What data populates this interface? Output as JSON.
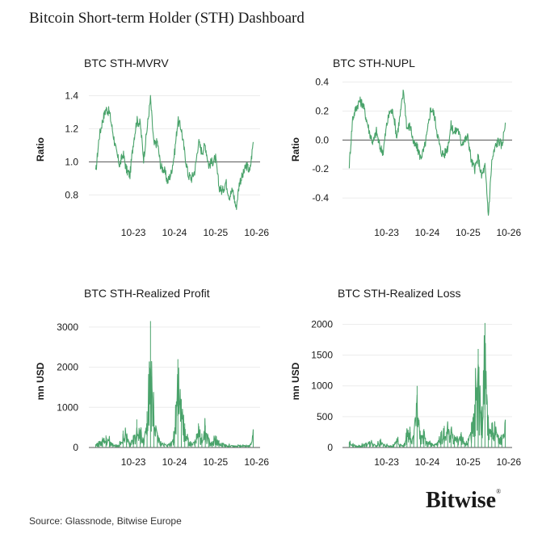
{
  "title": "Bitcoin Short-term Holder (STH) Dashboard",
  "source": "Source: Glassnode, Bitwise Europe",
  "brand": "Bitwise",
  "series_color": "#4aa36b",
  "chart_data": [
    {
      "id": "mvrv",
      "type": "line",
      "title": "BTC STH-MVRV",
      "ylabel": "Ratio",
      "xlabel": "",
      "x_range": [
        "2022-09",
        "2026-11"
      ],
      "xticks": [
        "10-23",
        "10-24",
        "10-25",
        "10-26"
      ],
      "ylim": [
        0.65,
        1.5
      ],
      "yticks": [
        0.8,
        1.0,
        1.2,
        1.4
      ],
      "ytick_labels": [
        "0.8",
        "1.0",
        "1.2",
        "1.4"
      ],
      "reference_line": 1.0,
      "grid": true,
      "series": [
        {
          "x": [
            "2022-11",
            "2022-12",
            "2023-01",
            "2023-02",
            "2023-03",
            "2023-04",
            "2023-05",
            "2023-06",
            "2023-07",
            "2023-08",
            "2023-09",
            "2023-10",
            "2023-11",
            "2023-12",
            "2024-01",
            "2024-02",
            "2024-03",
            "2024-04",
            "2024-05",
            "2024-06",
            "2024-07",
            "2024-08",
            "2024-09",
            "2024-10",
            "2024-11",
            "2024-12",
            "2025-01",
            "2025-02",
            "2025-03",
            "2025-04",
            "2025-05",
            "2025-06",
            "2025-07",
            "2025-08",
            "2025-09",
            "2025-10",
            "2025-11",
            "2025-12",
            "2026-01",
            "2026-02",
            "2026-03",
            "2026-04",
            "2026-05",
            "2026-06",
            "2026-07",
            "2026-08",
            "2026-09"
          ],
          "values": [
            0.93,
            1.15,
            1.25,
            1.32,
            1.3,
            1.18,
            1.06,
            0.98,
            1.05,
            0.95,
            0.92,
            1.12,
            1.25,
            1.23,
            1.02,
            1.2,
            1.38,
            1.1,
            1.12,
            0.97,
            0.95,
            0.88,
            0.93,
            1.05,
            1.25,
            1.2,
            1.05,
            0.92,
            0.9,
            0.95,
            1.12,
            1.06,
            1.1,
            0.98,
            1.0,
            1.02,
            0.85,
            0.82,
            0.88,
            0.79,
            0.83,
            0.72,
            0.88,
            0.92,
            0.98,
            0.94,
            1.12
          ]
        }
      ]
    },
    {
      "id": "nupl",
      "type": "line",
      "title": "BTC STH-NUPL",
      "ylabel": "Ratio",
      "xlabel": "",
      "x_range": [
        "2022-09",
        "2026-11"
      ],
      "xticks": [
        "10-23",
        "10-24",
        "10-25",
        "10-26"
      ],
      "ylim": [
        -0.55,
        0.42
      ],
      "yticks": [
        -0.4,
        -0.2,
        0.0,
        0.2,
        0.4
      ],
      "ytick_labels": [
        "-0.4",
        "-0.2",
        "0.0",
        "0.2",
        "0.4"
      ],
      "reference_line": 0.0,
      "grid": true,
      "series": [
        {
          "x": [
            "2022-11",
            "2022-12",
            "2023-01",
            "2023-02",
            "2023-03",
            "2023-04",
            "2023-05",
            "2023-06",
            "2023-07",
            "2023-08",
            "2023-09",
            "2023-10",
            "2023-11",
            "2023-12",
            "2024-01",
            "2024-02",
            "2024-03",
            "2024-04",
            "2024-05",
            "2024-06",
            "2024-07",
            "2024-08",
            "2024-09",
            "2024-10",
            "2024-11",
            "2024-12",
            "2025-01",
            "2025-02",
            "2025-03",
            "2025-04",
            "2025-05",
            "2025-06",
            "2025-07",
            "2025-08",
            "2025-09",
            "2025-10",
            "2025-11",
            "2025-12",
            "2026-01",
            "2026-02",
            "2026-03",
            "2026-04",
            "2026-05",
            "2026-06",
            "2026-07",
            "2026-08",
            "2026-09"
          ],
          "values": [
            -0.17,
            0.15,
            0.22,
            0.27,
            0.25,
            0.15,
            0.05,
            -0.02,
            0.06,
            -0.05,
            -0.08,
            0.1,
            0.2,
            0.19,
            0.02,
            0.17,
            0.34,
            0.08,
            0.1,
            -0.03,
            -0.05,
            -0.12,
            -0.07,
            0.05,
            0.22,
            0.18,
            0.04,
            -0.08,
            -0.1,
            -0.05,
            0.1,
            0.05,
            0.08,
            -0.02,
            0.0,
            0.02,
            -0.15,
            -0.2,
            -0.12,
            -0.25,
            -0.18,
            -0.52,
            -0.15,
            -0.05,
            0.0,
            -0.04,
            0.12
          ]
        }
      ]
    },
    {
      "id": "profit",
      "type": "line",
      "title": "BTC STH-Realized Profit",
      "ylabel": "mn USD",
      "xlabel": "",
      "x_range": [
        "2022-09",
        "2026-11"
      ],
      "xticks": [
        "10-23",
        "10-24",
        "10-25",
        "10-26"
      ],
      "ylim": [
        0,
        3300
      ],
      "yticks": [
        0,
        1000,
        2000,
        3000
      ],
      "ytick_labels": [
        "0",
        "1000",
        "2000",
        "3000"
      ],
      "reference_line": 0,
      "grid": true,
      "series": [
        {
          "x": [
            "2022-11",
            "2022-12",
            "2023-01",
            "2023-02",
            "2023-03",
            "2023-04",
            "2023-05",
            "2023-06",
            "2023-07",
            "2023-08",
            "2023-09",
            "2023-10",
            "2023-11",
            "2023-12",
            "2024-01",
            "2024-02",
            "2024-03",
            "2024-04",
            "2024-05",
            "2024-06",
            "2024-07",
            "2024-08",
            "2024-09",
            "2024-10",
            "2024-11",
            "2024-12",
            "2025-01",
            "2025-02",
            "2025-03",
            "2025-04",
            "2025-05",
            "2025-06",
            "2025-07",
            "2025-08",
            "2025-09",
            "2025-10",
            "2025-11",
            "2025-12",
            "2026-01",
            "2026-02",
            "2026-03",
            "2026-04",
            "2026-05",
            "2026-06",
            "2026-07",
            "2026-08",
            "2026-09"
          ],
          "values": [
            80,
            150,
            250,
            300,
            220,
            100,
            80,
            150,
            420,
            260,
            150,
            260,
            700,
            450,
            200,
            900,
            3150,
            800,
            350,
            150,
            120,
            80,
            150,
            400,
            2200,
            1200,
            600,
            250,
            130,
            200,
            600,
            350,
            550,
            250,
            120,
            300,
            180,
            120,
            80,
            60,
            50,
            40,
            60,
            70,
            50,
            60,
            450
          ]
        }
      ]
    },
    {
      "id": "loss",
      "type": "line",
      "title": "BTC STH-Realized Loss",
      "ylabel": "mn USD",
      "xlabel": "",
      "x_range": [
        "2022-09",
        "2026-11"
      ],
      "xticks": [
        "10-23",
        "10-24",
        "10-25",
        "10-26"
      ],
      "ylim": [
        0,
        2150
      ],
      "yticks": [
        0,
        500,
        1000,
        1500,
        2000
      ],
      "ytick_labels": [
        "0",
        "500",
        "1000",
        "1500",
        "2000"
      ],
      "reference_line": 0,
      "grid": true,
      "series": [
        {
          "x": [
            "2022-11",
            "2022-12",
            "2023-01",
            "2023-02",
            "2023-03",
            "2023-04",
            "2023-05",
            "2023-06",
            "2023-07",
            "2023-08",
            "2023-09",
            "2023-10",
            "2023-11",
            "2023-12",
            "2024-01",
            "2024-02",
            "2024-03",
            "2024-04",
            "2024-05",
            "2024-06",
            "2024-07",
            "2024-08",
            "2024-09",
            "2024-10",
            "2024-11",
            "2024-12",
            "2025-01",
            "2025-02",
            "2025-03",
            "2025-04",
            "2025-05",
            "2025-06",
            "2025-07",
            "2025-08",
            "2025-09",
            "2025-10",
            "2025-11",
            "2025-12",
            "2026-01",
            "2026-02",
            "2026-03",
            "2026-04",
            "2026-05",
            "2026-06",
            "2026-07",
            "2026-08",
            "2026-09"
          ],
          "values": [
            90,
            60,
            40,
            30,
            50,
            80,
            100,
            70,
            40,
            120,
            60,
            50,
            30,
            40,
            150,
            60,
            50,
            300,
            250,
            200,
            1000,
            200,
            300,
            100,
            80,
            50,
            90,
            250,
            350,
            400,
            300,
            200,
            150,
            250,
            80,
            150,
            400,
            700,
            1600,
            600,
            2020,
            500,
            400,
            300,
            200,
            150,
            450
          ]
        }
      ]
    }
  ]
}
